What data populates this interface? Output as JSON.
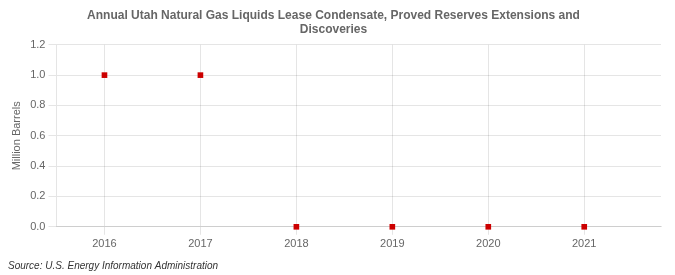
{
  "chart_data": {
    "type": "scatter",
    "title": "Annual Utah Natural Gas Liquids Lease Condensate, Proved Reserves Extensions and\nDiscoveries",
    "ylabel": "Million Barrels",
    "annotations": [
      "Source: U.S. Energy Information Administration"
    ],
    "x": [
      2016,
      2017,
      2018,
      2019,
      2020,
      2021
    ],
    "values": [
      1.0,
      1.0,
      0.0,
      0.0,
      0.0,
      0.0
    ],
    "color": "#cc0000",
    "marker": "square",
    "xlim": [
      2015.5,
      2021.8
    ],
    "ylim": [
      0.0,
      1.2
    ],
    "xticks": [
      2016,
      2017,
      2018,
      2019,
      2020,
      2021
    ],
    "yticks": [
      {
        "value": 0.0,
        "label": "0.0"
      },
      0.2,
      0.4,
      0.6,
      0.8,
      {
        "value": 1.0,
        "label": "1.0"
      },
      1.2
    ],
    "grid": true
  }
}
